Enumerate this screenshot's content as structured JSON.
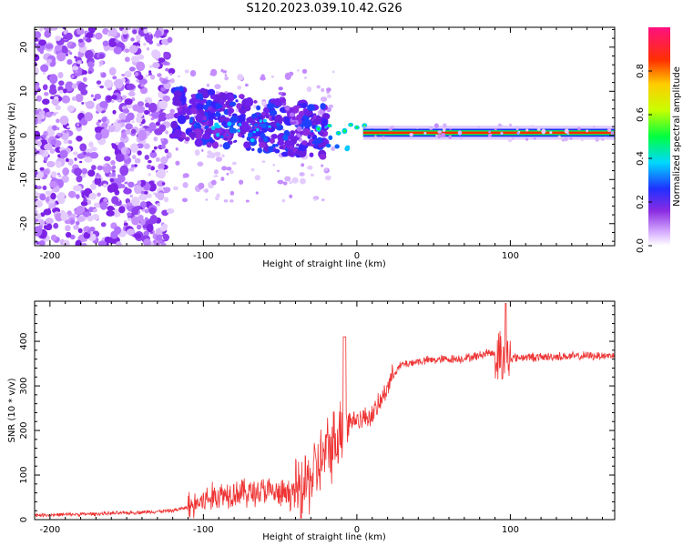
{
  "title": "S120.2023.039.10.42.G26",
  "chart_data": [
    {
      "type": "heatmap",
      "xlabel": "Height of straight line (km)",
      "ylabel": "Frequency (Hz)",
      "xlim": [
        -210,
        168
      ],
      "ylim": [
        -25,
        24.5
      ],
      "xticks": [
        -200,
        -100,
        0,
        100
      ],
      "yticks": [
        -20,
        -10,
        0,
        10,
        20
      ],
      "colorbar": {
        "label": "Normalized spectral amplitude",
        "range": [
          0,
          1
        ],
        "ticks": [
          0.0,
          0.2,
          0.4,
          0.6,
          0.8
        ]
      },
      "features": {
        "noise_region_km": [
          -210,
          -120
        ],
        "scattered_signal_km": [
          -120,
          -20
        ],
        "steady_line_km": [
          10,
          168
        ],
        "steady_line_freq_hz": 0.6
      }
    },
    {
      "type": "line",
      "xlabel": "Height of straight line (km)",
      "ylabel": "SNR (10 * v/v)",
      "xlim": [
        -210,
        168
      ],
      "ylim": [
        0,
        490
      ],
      "xticks": [
        -200,
        -100,
        0,
        100
      ],
      "yticks": [
        0,
        100,
        200,
        300,
        400
      ],
      "color": "#ee3333",
      "series": [
        {
          "x": [
            -210,
            -180,
            -150,
            -120,
            -110,
            -100,
            -90,
            -80,
            -70,
            -60,
            -50,
            -40,
            -35,
            -30,
            -25,
            -20,
            -15,
            -10,
            -5,
            0,
            5,
            10,
            15,
            20,
            25,
            30,
            40,
            50,
            60,
            70,
            80,
            85,
            90,
            95,
            97,
            100,
            110,
            120,
            130,
            140,
            150,
            160,
            168
          ],
          "y": [
            10,
            12,
            15,
            20,
            28,
            42,
            55,
            62,
            60,
            65,
            55,
            60,
            70,
            95,
            120,
            150,
            175,
            205,
            220,
            225,
            228,
            235,
            260,
            300,
            335,
            348,
            355,
            358,
            360,
            362,
            368,
            375,
            372,
            365,
            360,
            362,
            365,
            364,
            366,
            366,
            367,
            368,
            368
          ]
        }
      ]
    }
  ]
}
